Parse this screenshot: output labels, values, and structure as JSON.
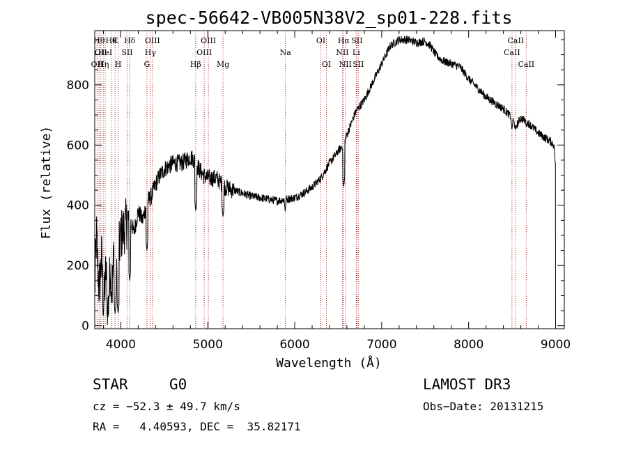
{
  "chart_data": {
    "type": "line",
    "title": "spec-56642-VB005N38V2_sp01-228.fits",
    "xlabel": "Wavelength (Å)",
    "ylabel": "Flux (relative)",
    "xlim": [
      3700,
      9100
    ],
    "ylim": [
      -10,
      980
    ],
    "xticks": [
      4000,
      5000,
      6000,
      7000,
      8000,
      9000
    ],
    "yticks": [
      0,
      200,
      400,
      600,
      800
    ],
    "spectrum_anchors": [
      [
        3700,
        120
      ],
      [
        3720,
        300
      ],
      [
        3750,
        120
      ],
      [
        3780,
        230
      ],
      [
        3800,
        60
      ],
      [
        3830,
        190
      ],
      [
        3850,
        30
      ],
      [
        3880,
        200
      ],
      [
        3900,
        120
      ],
      [
        3920,
        250
      ],
      [
        3950,
        140
      ],
      [
        3970,
        230
      ],
      [
        4000,
        300
      ],
      [
        4050,
        330
      ],
      [
        4100,
        360
      ],
      [
        4150,
        310
      ],
      [
        4200,
        380
      ],
      [
        4250,
        350
      ],
      [
        4300,
        410
      ],
      [
        4350,
        430
      ],
      [
        4400,
        470
      ],
      [
        4450,
        500
      ],
      [
        4500,
        520
      ],
      [
        4600,
        540
      ],
      [
        4700,
        540
      ],
      [
        4800,
        560
      ],
      [
        4850,
        550
      ],
      [
        4900,
        520
      ],
      [
        4950,
        500
      ],
      [
        5000,
        490
      ],
      [
        5100,
        490
      ],
      [
        5200,
        460
      ],
      [
        5300,
        450
      ],
      [
        5400,
        440
      ],
      [
        5500,
        430
      ],
      [
        5600,
        425
      ],
      [
        5700,
        420
      ],
      [
        5800,
        415
      ],
      [
        5900,
        420
      ],
      [
        6000,
        425
      ],
      [
        6100,
        440
      ],
      [
        6200,
        460
      ],
      [
        6300,
        490
      ],
      [
        6400,
        540
      ],
      [
        6500,
        580
      ],
      [
        6560,
        600
      ],
      [
        6620,
        650
      ],
      [
        6700,
        710
      ],
      [
        6800,
        750
      ],
      [
        6900,
        810
      ],
      [
        7000,
        870
      ],
      [
        7100,
        930
      ],
      [
        7200,
        950
      ],
      [
        7300,
        950
      ],
      [
        7400,
        940
      ],
      [
        7500,
        945
      ],
      [
        7560,
        930
      ],
      [
        7620,
        900
      ],
      [
        7700,
        880
      ],
      [
        7800,
        870
      ],
      [
        7900,
        860
      ],
      [
        8000,
        820
      ],
      [
        8100,
        790
      ],
      [
        8200,
        760
      ],
      [
        8300,
        740
      ],
      [
        8400,
        720
      ],
      [
        8500,
        690
      ],
      [
        8540,
        660
      ],
      [
        8600,
        690
      ],
      [
        8700,
        670
      ],
      [
        8800,
        640
      ],
      [
        8850,
        630
      ],
      [
        8900,
        620
      ],
      [
        8950,
        610
      ],
      [
        8980,
        600
      ],
      [
        9000,
        540
      ]
    ],
    "spectrum_dips": [
      [
        3934,
        40
      ],
      [
        3969,
        40
      ],
      [
        4102,
        150
      ],
      [
        4300,
        250
      ],
      [
        4862,
        380
      ],
      [
        5175,
        360
      ],
      [
        5890,
        380
      ],
      [
        6563,
        460
      ],
      [
        8498,
        650
      ],
      [
        8542,
        650
      ],
      [
        8662,
        660
      ]
    ],
    "spectral_lines": [
      {
        "x": 3727,
        "label": "OII",
        "row": 3
      },
      {
        "x": 3750,
        "label": "Hθ",
        "row": 1
      },
      {
        "x": 3770,
        "label": "OII",
        "row": 2
      },
      {
        "x": 3798,
        "label": "Hη",
        "row": 3
      },
      {
        "x": 3820,
        "label": "HeI",
        "row": 2
      },
      {
        "x": 3889,
        "label": "Hθ",
        "row": 1
      },
      {
        "x": 3934,
        "label": "K",
        "row": 1
      },
      {
        "x": 3969,
        "label": "H",
        "row": 3
      },
      {
        "x": 4072,
        "label": "SII",
        "row": 2
      },
      {
        "x": 4102,
        "label": "Hδ",
        "row": 1
      },
      {
        "x": 4300,
        "label": "G",
        "row": 3
      },
      {
        "x": 4340,
        "label": "Hγ",
        "row": 2
      },
      {
        "x": 4363,
        "label": "OIII",
        "row": 1
      },
      {
        "x": 4861,
        "label": "Hβ",
        "row": 3
      },
      {
        "x": 4959,
        "label": "OIII",
        "row": 2
      },
      {
        "x": 5007,
        "label": "OIII",
        "row": 1
      },
      {
        "x": 5175,
        "label": "Mg",
        "row": 3
      },
      {
        "x": 5893,
        "label": "Na",
        "row": 2
      },
      {
        "x": 6300,
        "label": "OI",
        "row": 1
      },
      {
        "x": 6364,
        "label": "OI",
        "row": 3
      },
      {
        "x": 6548,
        "label": "NII",
        "row": 2
      },
      {
        "x": 6563,
        "label": "Hα",
        "row": 1
      },
      {
        "x": 6583,
        "label": "NII",
        "row": 3
      },
      {
        "x": 6707,
        "label": "Li",
        "row": 2
      },
      {
        "x": 6716,
        "label": "SII",
        "row": 1
      },
      {
        "x": 6731,
        "label": "SII",
        "row": 3
      },
      {
        "x": 8498,
        "label": "CaII",
        "row": 2
      },
      {
        "x": 8542,
        "label": "CaII",
        "row": 1
      },
      {
        "x": 8662,
        "label": "CaII",
        "row": 3
      }
    ]
  },
  "info": {
    "class": "STAR",
    "subclass": "G0",
    "survey": "LAMOST DR3",
    "cz": "cz = −52.3 ± 49.7 km/s",
    "obs_date": "Obs−Date: 20131215",
    "radec": "RA =   4.40593, DEC =  35.82171"
  }
}
